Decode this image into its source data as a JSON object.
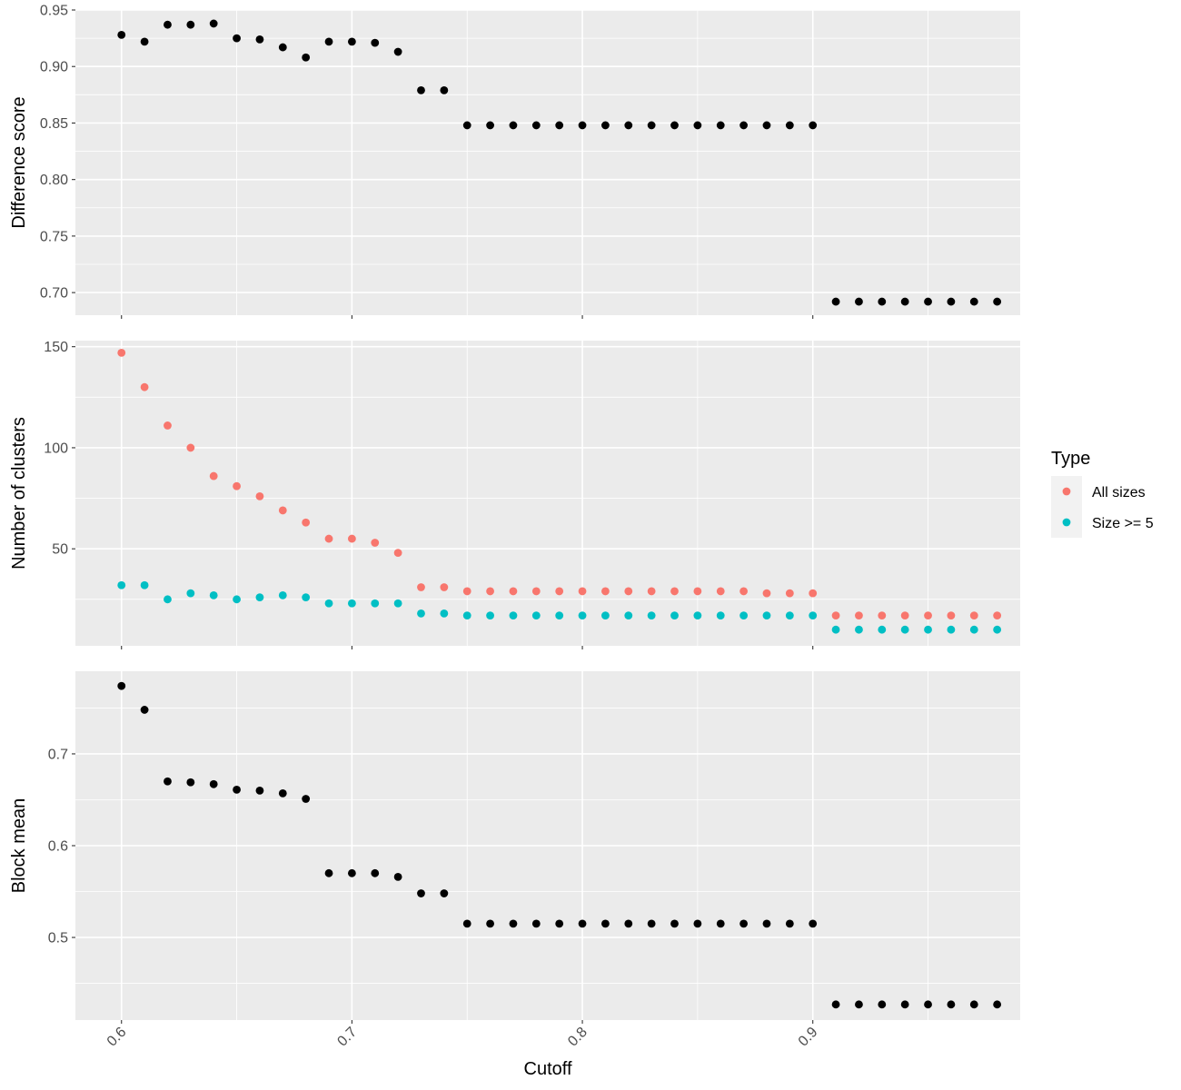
{
  "chart_data": {
    "type": "scatter",
    "xlabel": "Cutoff",
    "x_range": [
      0.58,
      0.99
    ],
    "x_ticks": [
      0.6,
      0.7,
      0.8,
      0.9
    ],
    "x_tick_labels": [
      "0.6",
      "0.7",
      "0.8",
      "0.9"
    ],
    "x": [
      0.6,
      0.61,
      0.62,
      0.63,
      0.64,
      0.65,
      0.66,
      0.67,
      0.68,
      0.69,
      0.7,
      0.71,
      0.72,
      0.73,
      0.74,
      0.75,
      0.76,
      0.77,
      0.78,
      0.79,
      0.8,
      0.81,
      0.82,
      0.83,
      0.84,
      0.85,
      0.86,
      0.87,
      0.88,
      0.89,
      0.9,
      0.91,
      0.92,
      0.93,
      0.94,
      0.95,
      0.96,
      0.97,
      0.98
    ],
    "grid": true,
    "legend": {
      "title": "Type",
      "position": "right",
      "entries": [
        {
          "label": "All sizes",
          "color": "#F8766D"
        },
        {
          "label": "Size >= 5",
          "color": "#00BFC4"
        }
      ]
    },
    "panels": [
      {
        "ylabel": "Difference score",
        "ylim": [
          0.68,
          0.95
        ],
        "y_ticks": [
          0.7,
          0.75,
          0.8,
          0.85,
          0.9,
          0.95
        ],
        "y_tick_labels": [
          "0.70",
          "0.75",
          "0.80",
          "0.85",
          "0.90",
          "0.95"
        ],
        "series": [
          {
            "color": "#000000",
            "values": [
              0.928,
              0.922,
              0.937,
              0.937,
              0.938,
              0.925,
              0.924,
              0.917,
              0.908,
              0.922,
              0.922,
              0.921,
              0.913,
              0.879,
              0.879,
              0.848,
              0.848,
              0.848,
              0.848,
              0.848,
              0.848,
              0.848,
              0.848,
              0.848,
              0.848,
              0.848,
              0.848,
              0.848,
              0.848,
              0.848,
              0.848,
              0.692,
              0.692,
              0.692,
              0.692,
              0.692,
              0.692,
              0.692,
              0.692
            ]
          }
        ]
      },
      {
        "ylabel": "Number of clusters",
        "ylim": [
          2,
          153
        ],
        "y_ticks": [
          50,
          100,
          150
        ],
        "y_tick_labels": [
          "50",
          "100",
          "150"
        ],
        "series": [
          {
            "name": "All sizes",
            "color": "#F8766D",
            "values": [
              147,
              130,
              111,
              100,
              86,
              81,
              76,
              69,
              63,
              55,
              55,
              53,
              48,
              31,
              31,
              29,
              29,
              29,
              29,
              29,
              29,
              29,
              29,
              29,
              29,
              29,
              29,
              29,
              28,
              28,
              28,
              17,
              17,
              17,
              17,
              17,
              17,
              17,
              17
            ]
          },
          {
            "name": "Size >= 5",
            "color": "#00BFC4",
            "values": [
              32,
              32,
              25,
              28,
              27,
              25,
              26,
              27,
              26,
              23,
              23,
              23,
              23,
              18,
              18,
              17,
              17,
              17,
              17,
              17,
              17,
              17,
              17,
              17,
              17,
              17,
              17,
              17,
              17,
              17,
              17,
              10,
              10,
              10,
              10,
              10,
              10,
              10,
              10
            ]
          }
        ]
      },
      {
        "ylabel": "Block mean",
        "ylim": [
          0.41,
          0.79
        ],
        "y_ticks": [
          0.5,
          0.6,
          0.7
        ],
        "y_tick_labels": [
          "0.5",
          "0.6",
          "0.7"
        ],
        "series": [
          {
            "color": "#000000",
            "values": [
              0.774,
              0.748,
              0.67,
              0.669,
              0.667,
              0.661,
              0.66,
              0.657,
              0.651,
              0.57,
              0.57,
              0.57,
              0.566,
              0.548,
              0.548,
              0.515,
              0.515,
              0.515,
              0.515,
              0.515,
              0.515,
              0.515,
              0.515,
              0.515,
              0.515,
              0.515,
              0.515,
              0.515,
              0.515,
              0.515,
              0.515,
              0.427,
              0.427,
              0.427,
              0.427,
              0.427,
              0.427,
              0.427,
              0.427
            ]
          }
        ]
      }
    ]
  }
}
